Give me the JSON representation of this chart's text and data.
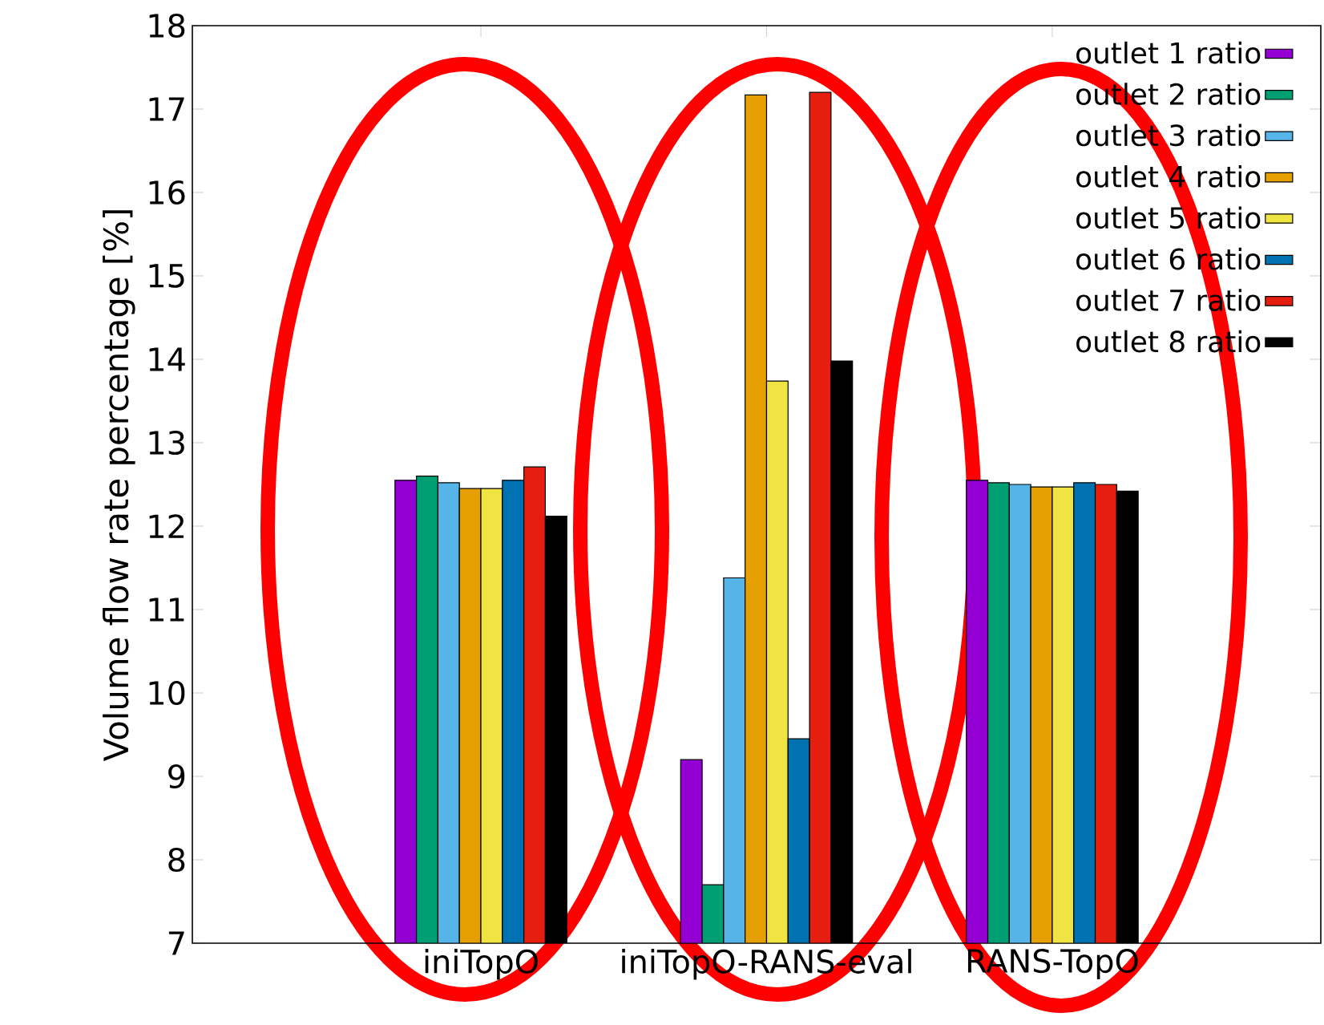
{
  "chart_data": {
    "type": "bar",
    "ylabel": "Volume flow rate percentage [%]",
    "categories": [
      "iniTopO",
      "iniTopO-RANS-eval",
      "RANS-TopO"
    ],
    "ylim": [
      7,
      18
    ],
    "yticks": [
      7,
      8,
      9,
      10,
      11,
      12,
      13,
      14,
      15,
      16,
      17,
      18
    ],
    "legend": "top right",
    "series": [
      {
        "name": "outlet 1 ratio",
        "color": "#9400d3",
        "values": [
          12.55,
          9.2,
          12.55
        ]
      },
      {
        "name": "outlet 2 ratio",
        "color": "#009e73",
        "values": [
          12.6,
          7.7,
          12.52
        ]
      },
      {
        "name": "outlet 3 ratio",
        "color": "#56b4e9",
        "values": [
          12.52,
          11.38,
          12.5
        ]
      },
      {
        "name": "outlet 4 ratio",
        "color": "#e69f00",
        "values": [
          12.45,
          17.17,
          12.47
        ]
      },
      {
        "name": "outlet 5 ratio",
        "color": "#f0e442",
        "values": [
          12.45,
          13.74,
          12.47
        ]
      },
      {
        "name": "outlet 6 ratio",
        "color": "#0072b2",
        "values": [
          12.55,
          9.45,
          12.52
        ]
      },
      {
        "name": "outlet 7 ratio",
        "color": "#e51e10",
        "values": [
          12.71,
          17.2,
          12.5
        ]
      },
      {
        "name": "outlet 8 ratio",
        "color": "#000000",
        "values": [
          12.12,
          13.98,
          12.42
        ]
      }
    ]
  }
}
